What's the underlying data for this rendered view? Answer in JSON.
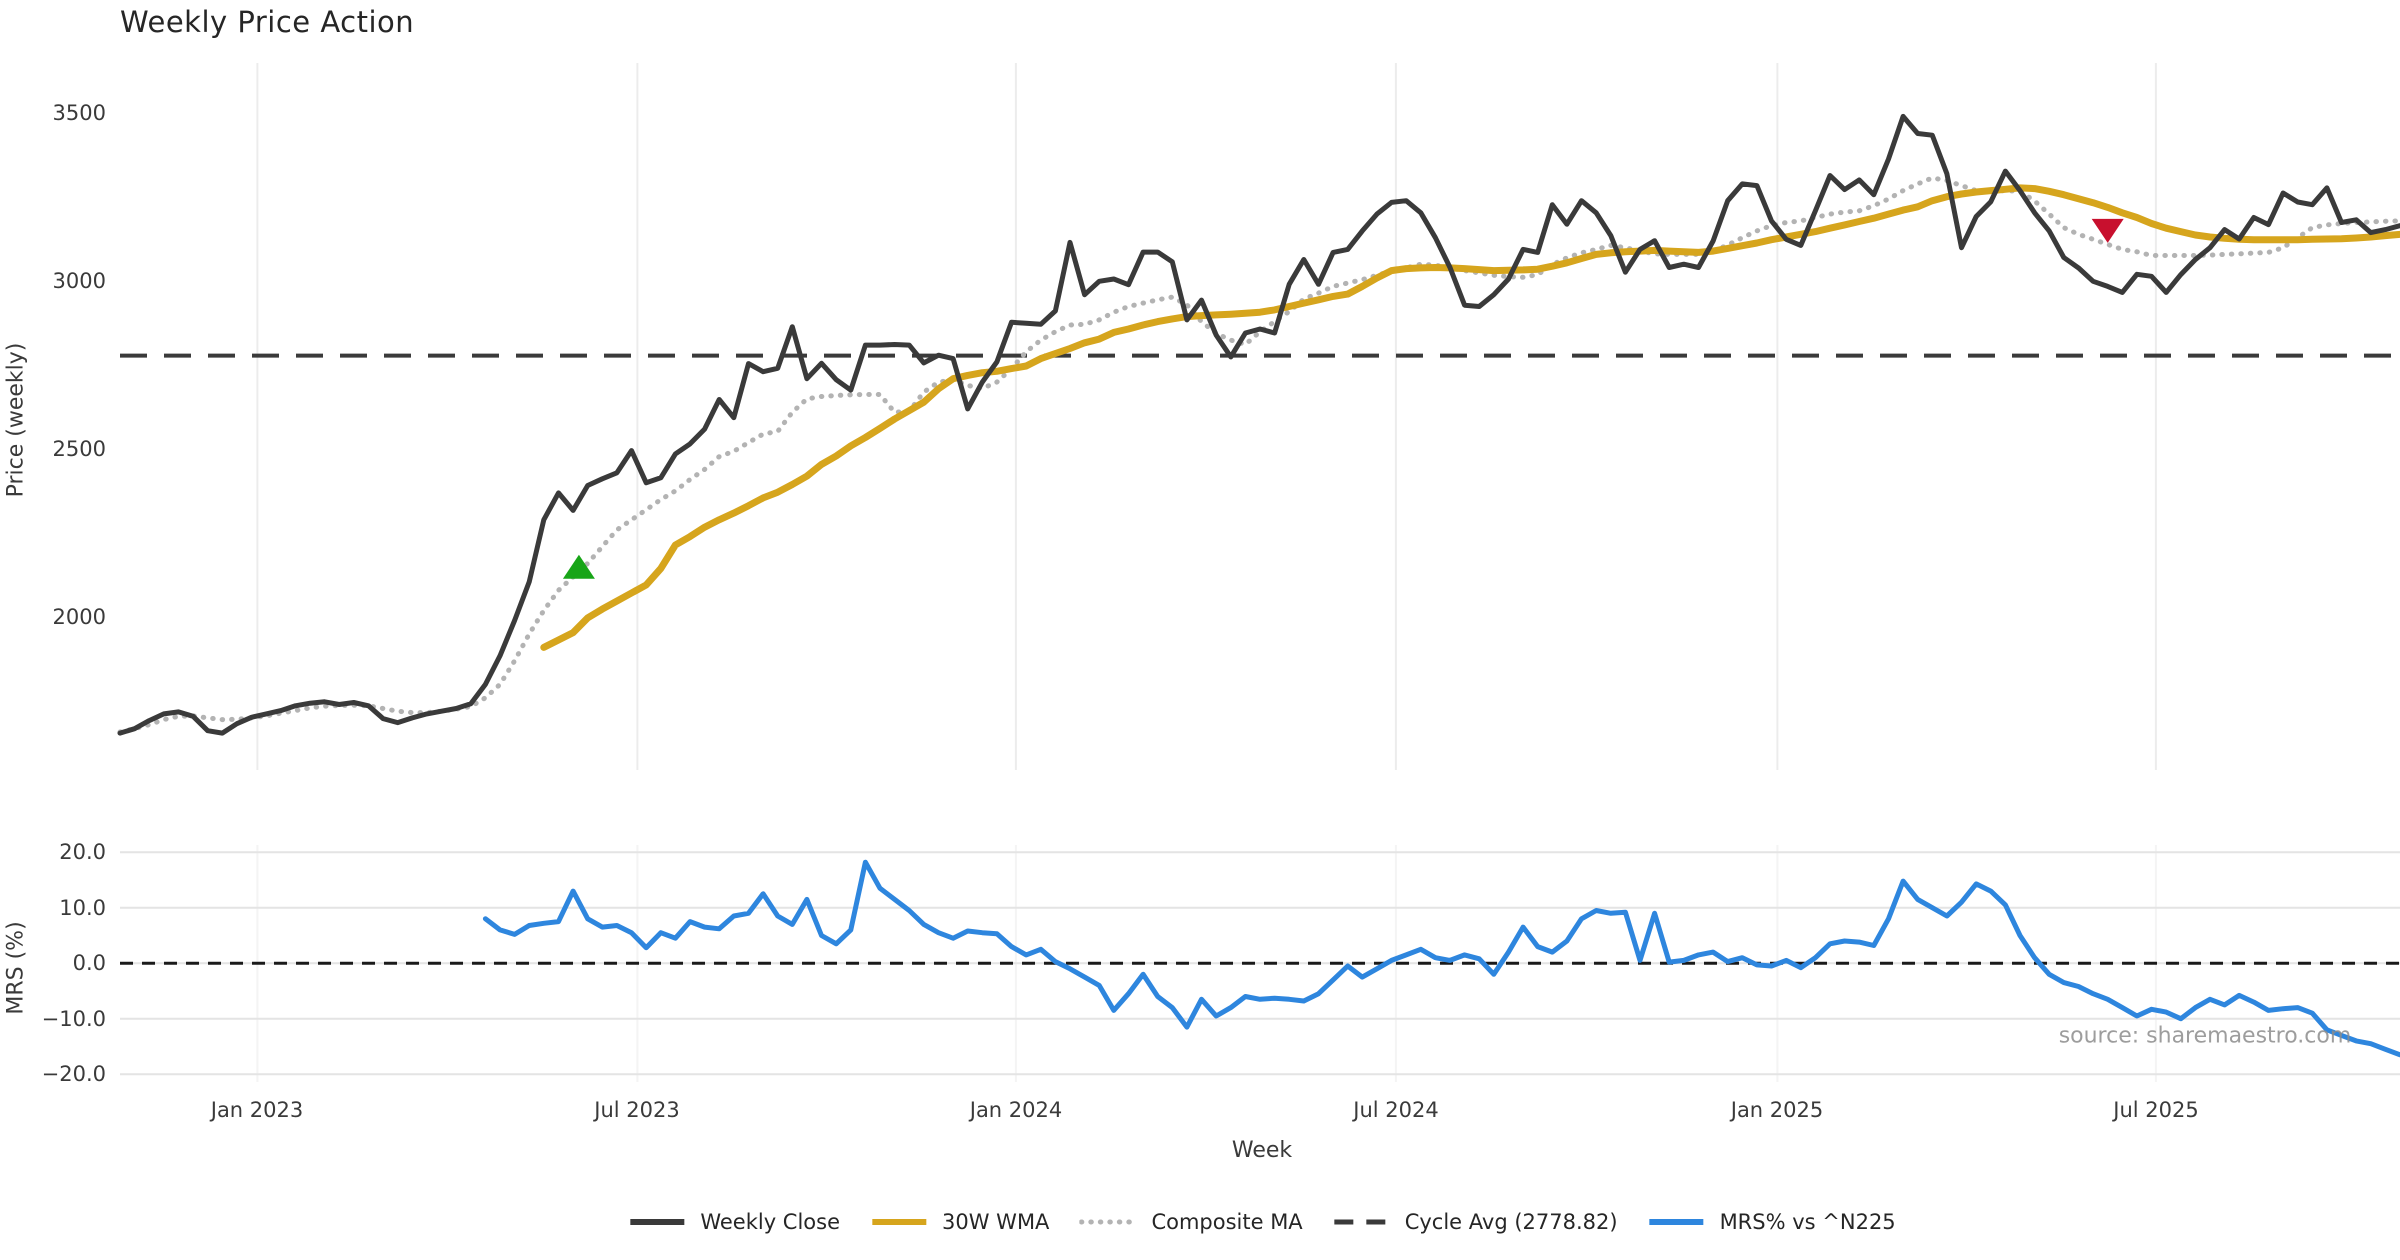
{
  "title": "Weekly Price Action",
  "source": "source: sharemaestro.com",
  "colors": {
    "weekly_close": "#3a3a3a",
    "wma_30w": "#d6a51d",
    "composite_ma": "#b3b3b3",
    "cycle_avg": "#3a3a3a",
    "mrs": "#2e86de",
    "buy_marker": "#18a518",
    "sell_marker": "#c8102e",
    "grid_vertical": "#ececec",
    "grid_horizontal": "#e4e4e4",
    "tick_text": "#3a3a3a"
  },
  "axis": {
    "week_label": "Week",
    "x_ticks": [
      {
        "week": 9.4,
        "label": "Jan 2023"
      },
      {
        "week": 35.4,
        "label": "Jul 2023"
      },
      {
        "week": 61.3,
        "label": "Jan 2024"
      },
      {
        "week": 87.3,
        "label": "Jul 2024"
      },
      {
        "week": 113.4,
        "label": "Jan 2025"
      },
      {
        "week": 139.3,
        "label": "Jul 2025"
      }
    ]
  },
  "legend": {
    "items": [
      {
        "label": "Weekly Close",
        "color": "#3a3a3a",
        "style": "solid"
      },
      {
        "label": "30W WMA",
        "color": "#d6a51d",
        "style": "solid"
      },
      {
        "label": "Composite MA",
        "color": "#b3b3b3",
        "style": "dotted"
      },
      {
        "label": "Cycle Avg (2778.82)",
        "color": "#3a3a3a",
        "style": "dashed"
      },
      {
        "label": "MRS% vs ^N225",
        "color": "#2e86de",
        "style": "solid"
      }
    ]
  },
  "chart_data": [
    {
      "type": "line",
      "panel": "price",
      "title": "Weekly Price Action",
      "xlabel": "Week",
      "ylabel": "Price (weekly)",
      "ylim": [
        1545,
        3650
      ],
      "y_ticks": [
        {
          "value": 3500,
          "label": "3500"
        },
        {
          "value": 3000,
          "label": "3000"
        },
        {
          "value": 2500,
          "label": "2500"
        },
        {
          "value": 2000,
          "label": "2000"
        }
      ],
      "cycle_avg": 2778.82,
      "grid": "vertical",
      "legend_position": "bottom",
      "markers": [
        {
          "name": "buy-signal-marker",
          "shape": "triangle-up",
          "color": "#18a518",
          "week": 31.4,
          "price": 2150
        },
        {
          "name": "sell-signal-marker",
          "shape": "triangle-down",
          "color": "#c8102e",
          "week": 136,
          "price": 3150
        }
      ],
      "series": [
        {
          "name": "Weekly Close",
          "color": "#3a3a3a",
          "style": "solid",
          "width": 5,
          "start_week": 0,
          "values": [
            1655,
            1668,
            1692,
            1712,
            1718,
            1705,
            1662,
            1655,
            1683,
            1702,
            1712,
            1722,
            1736,
            1744,
            1748,
            1740,
            1746,
            1736,
            1698,
            1686,
            1700,
            1712,
            1720,
            1728,
            1742,
            1800,
            1885,
            1990,
            2105,
            2290,
            2370,
            2318,
            2392,
            2412,
            2430,
            2496,
            2400,
            2415,
            2486,
            2516,
            2560,
            2648,
            2594,
            2755,
            2731,
            2741,
            2865,
            2710,
            2756,
            2707,
            2676,
            2810,
            2810,
            2812,
            2810,
            2757,
            2780,
            2770,
            2620,
            2700,
            2760,
            2878,
            2875,
            2872,
            2912,
            3116,
            2960,
            3000,
            3007,
            2990,
            3087,
            3087,
            3058,
            2885,
            2944,
            2840,
            2775,
            2846,
            2858,
            2846,
            2991,
            3065,
            2991,
            3086,
            3095,
            3150,
            3200,
            3235,
            3240,
            3204,
            3130,
            3041,
            2929,
            2925,
            2960,
            3007,
            3095,
            3086,
            3228,
            3170,
            3240,
            3204,
            3136,
            3027,
            3095,
            3121,
            3041,
            3051,
            3041,
            3120,
            3240,
            3290,
            3285,
            3180,
            3125,
            3107,
            3210,
            3315,
            3273,
            3302,
            3258,
            3364,
            3491,
            3440,
            3435,
            3320,
            3100,
            3193,
            3237,
            3328,
            3270,
            3204,
            3150,
            3071,
            3040,
            3000,
            2985,
            2967,
            3021,
            3015,
            2967,
            3020,
            3065,
            3100,
            3154,
            3126,
            3190,
            3169,
            3263,
            3236,
            3228,
            3278,
            3175,
            3183,
            3145,
            3154,
            3166
          ]
        },
        {
          "name": "30W WMA",
          "color": "#d6a51d",
          "style": "solid",
          "width": 7,
          "start_week": 29,
          "values": [
            1910,
            1932,
            1954,
            1998,
            2024,
            2048,
            2072,
            2096,
            2145,
            2215,
            2240,
            2268,
            2290,
            2310,
            2332,
            2355,
            2372,
            2395,
            2420,
            2455,
            2480,
            2510,
            2535,
            2562,
            2590,
            2615,
            2640,
            2680,
            2710,
            2720,
            2728,
            2732,
            2740,
            2748,
            2770,
            2785,
            2800,
            2817,
            2828,
            2848,
            2858,
            2870,
            2880,
            2888,
            2895,
            2898,
            2900,
            2902,
            2905,
            2908,
            2915,
            2925,
            2935,
            2945,
            2955,
            2962,
            2985,
            3010,
            3032,
            3038,
            3040,
            3041,
            3040,
            3038,
            3035,
            3032,
            3033,
            3034,
            3036,
            3045,
            3055,
            3068,
            3080,
            3085,
            3088,
            3090,
            3092,
            3090,
            3088,
            3086,
            3090,
            3098,
            3106,
            3114,
            3124,
            3132,
            3140,
            3148,
            3158,
            3168,
            3178,
            3188,
            3200,
            3212,
            3222,
            3240,
            3252,
            3260,
            3266,
            3270,
            3274,
            3278,
            3276,
            3268,
            3258,
            3246,
            3234,
            3220,
            3204,
            3190,
            3172,
            3158,
            3148,
            3138,
            3132,
            3128,
            3125,
            3124,
            3124,
            3124,
            3124,
            3125,
            3126,
            3127,
            3129,
            3132,
            3136,
            3140
          ]
        },
        {
          "name": "Composite MA",
          "color": "#b3b3b3",
          "style": "dotted",
          "width": 5,
          "start_week": 0,
          "values": [
            1658,
            1668,
            1680,
            1695,
            1705,
            1706,
            1700,
            1695,
            1696,
            1700,
            1706,
            1714,
            1722,
            1730,
            1735,
            1737,
            1738,
            1736,
            1728,
            1720,
            1716,
            1716,
            1720,
            1726,
            1734,
            1760,
            1800,
            1870,
            1950,
            2020,
            2080,
            2120,
            2160,
            2210,
            2260,
            2290,
            2320,
            2350,
            2376,
            2410,
            2440,
            2478,
            2494,
            2520,
            2545,
            2553,
            2610,
            2650,
            2657,
            2660,
            2662,
            2663,
            2663,
            2610,
            2613,
            2670,
            2700,
            2707,
            2690,
            2681,
            2700,
            2740,
            2790,
            2825,
            2850,
            2870,
            2872,
            2885,
            2908,
            2925,
            2935,
            2945,
            2953,
            2930,
            2880,
            2845,
            2825,
            2812,
            2850,
            2880,
            2910,
            2947,
            2965,
            2985,
            2995,
            3005,
            3018,
            3030,
            3040,
            3051,
            3048,
            3040,
            3032,
            3025,
            3018,
            3014,
            3012,
            3020,
            3050,
            3070,
            3085,
            3095,
            3107,
            3100,
            3090,
            3082,
            3080,
            3080,
            3080,
            3090,
            3108,
            3130,
            3150,
            3166,
            3175,
            3180,
            3190,
            3200,
            3206,
            3210,
            3225,
            3245,
            3270,
            3290,
            3308,
            3300,
            3285,
            3270,
            3268,
            3270,
            3268,
            3239,
            3200,
            3160,
            3140,
            3125,
            3110,
            3095,
            3088,
            3077,
            3077,
            3077,
            3077,
            3078,
            3080,
            3082,
            3084,
            3086,
            3100,
            3130,
            3160,
            3168,
            3172,
            3175,
            3177,
            3179,
            3180
          ]
        }
      ]
    },
    {
      "type": "line",
      "panel": "mrs",
      "ylabel": "MRS (%)",
      "ylim": [
        -21.4,
        21.3
      ],
      "y_ticks": [
        {
          "value": 20,
          "label": "20.0"
        },
        {
          "value": 10,
          "label": "10.0"
        },
        {
          "value": 0,
          "label": "0.0"
        },
        {
          "value": -10,
          "label": "−10.0"
        },
        {
          "value": -20,
          "label": "−20.0"
        }
      ],
      "zero_line": 0,
      "grid": "both",
      "series": [
        {
          "name": "MRS% vs ^N225",
          "color": "#2e86de",
          "style": "solid",
          "width": 5,
          "start_week": 25,
          "values": [
            8.0,
            6.0,
            5.2,
            6.8,
            7.2,
            7.5,
            13.0,
            8.0,
            6.5,
            6.8,
            5.5,
            2.8,
            5.5,
            4.5,
            7.5,
            6.5,
            6.2,
            8.5,
            9.0,
            12.5,
            8.5,
            7.0,
            11.5,
            5.0,
            3.5,
            6.0,
            18.2,
            13.5,
            11.5,
            9.5,
            7.0,
            5.5,
            4.5,
            5.8,
            5.5,
            5.3,
            3.0,
            1.5,
            2.5,
            0.3,
            -1.0,
            -2.5,
            -4.0,
            -8.5,
            -5.5,
            -2.0,
            -6.0,
            -8.0,
            -11.5,
            -6.5,
            -9.5,
            -8.0,
            -6.0,
            -6.5,
            -6.3,
            -6.5,
            -6.8,
            -5.5,
            -3.0,
            -0.5,
            -2.5,
            -1.0,
            0.5,
            1.5,
            2.5,
            1.0,
            0.5,
            1.5,
            0.8,
            -2.0,
            2.0,
            6.5,
            3.0,
            2.0,
            4.0,
            8.0,
            9.5,
            9.0,
            9.2,
            0.5,
            9.0,
            0.2,
            0.5,
            1.5,
            2.0,
            0.3,
            1.0,
            -0.3,
            -0.5,
            0.5,
            -0.8,
            1.0,
            3.5,
            4.0,
            3.8,
            3.2,
            8.0,
            14.8,
            11.5,
            10.0,
            8.5,
            11.0,
            14.3,
            13.0,
            10.5,
            5.0,
            1.0,
            -2.0,
            -3.5,
            -4.2,
            -5.5,
            -6.5,
            -8.0,
            -9.5,
            -8.3,
            -8.8,
            -10.0,
            -8.0,
            -6.5,
            -7.5,
            -5.8,
            -7.0,
            -8.5,
            -8.2,
            -8.0,
            -9.0,
            -12.0,
            -13.0,
            -14.0,
            -14.5,
            -15.5,
            -16.5
          ]
        }
      ]
    }
  ]
}
